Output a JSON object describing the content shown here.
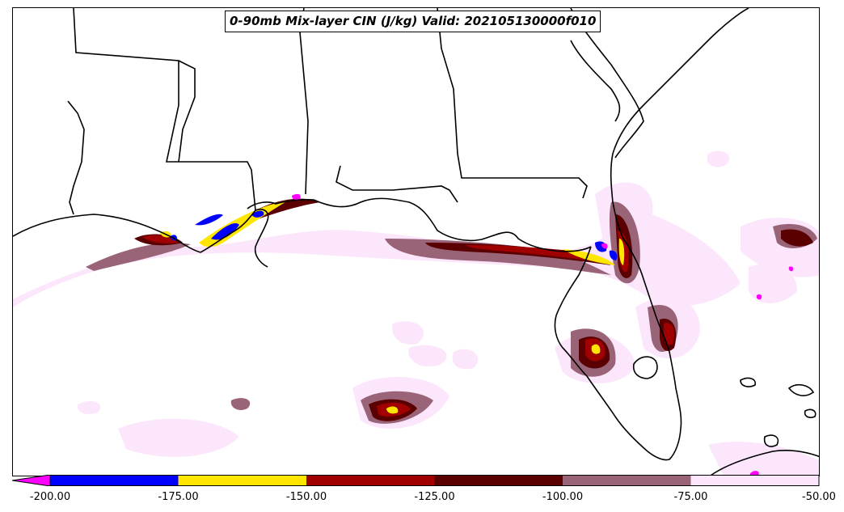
{
  "title": "0-90mb Mix-layer CIN (J/kg) Valid: 202105130000f010",
  "colorbar": {
    "extend": "min",
    "underflow_color": "#ff00ff",
    "bins": [
      {
        "from": -200,
        "to": -175,
        "color": "#0000ff"
      },
      {
        "from": -175,
        "to": -150,
        "color": "#ffe600"
      },
      {
        "from": -150,
        "to": -125,
        "color": "#a00000"
      },
      {
        "from": -125,
        "to": -100,
        "color": "#5a0000"
      },
      {
        "from": -100,
        "to": -75,
        "color": "#9a6478"
      },
      {
        "from": -75,
        "to": -50,
        "color": "#fce6fc"
      }
    ],
    "tick_labels": [
      "-200.00",
      "-175.00",
      "-150.00",
      "-125.00",
      "-100.00",
      "-75.00",
      "-50.00"
    ]
  }
}
